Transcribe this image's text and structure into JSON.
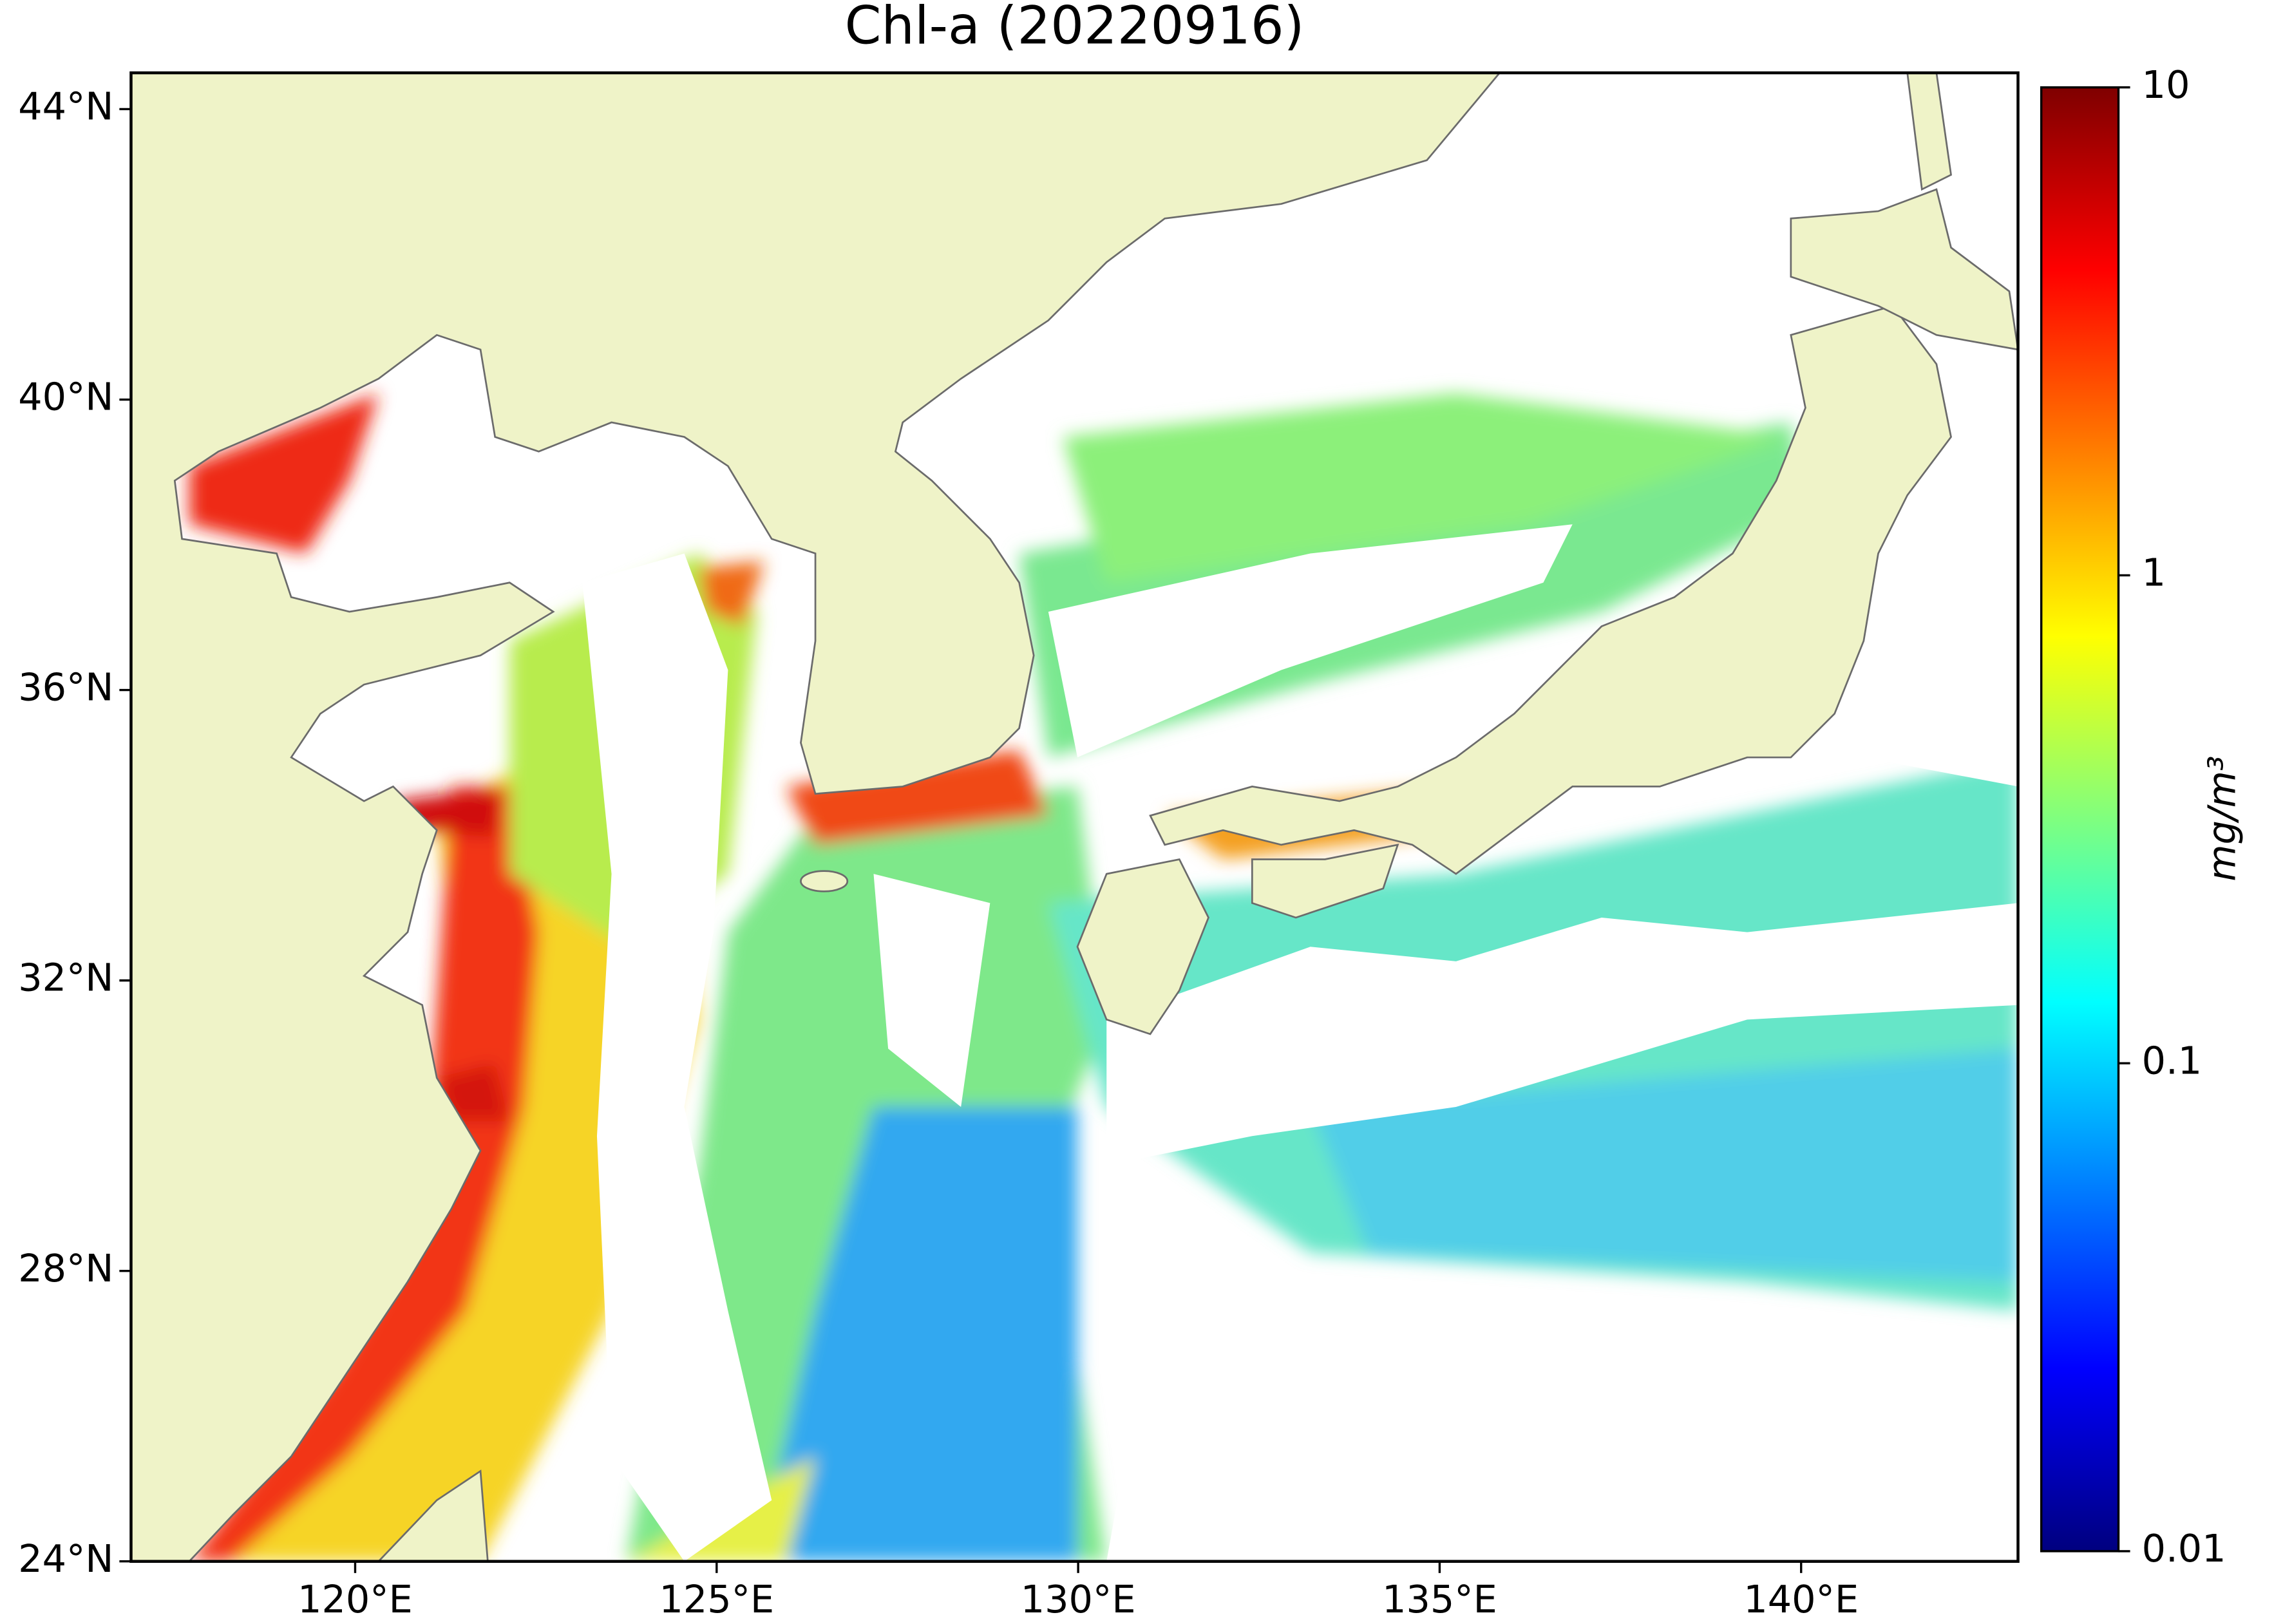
{
  "title": "Chl-a (20220916)",
  "map": {
    "xlim": [
      116.9,
      143
    ],
    "ylim": [
      24,
      44.5
    ],
    "xticks": [
      {
        "value": 120,
        "label": "120°E"
      },
      {
        "value": 125,
        "label": "125°E"
      },
      {
        "value": 130,
        "label": "130°E"
      },
      {
        "value": 135,
        "label": "135°E"
      },
      {
        "value": 140,
        "label": "140°E"
      }
    ],
    "yticks": [
      {
        "value": 24,
        "label": "24°N"
      },
      {
        "value": 28,
        "label": "28°N"
      },
      {
        "value": 32,
        "label": "32°N"
      },
      {
        "value": 36,
        "label": "36°N"
      },
      {
        "value": 40,
        "label": "40°N"
      },
      {
        "value": 44,
        "label": "44°N"
      }
    ]
  },
  "colorbar": {
    "label": "mg/m³",
    "lim": [
      0.01,
      10
    ],
    "ticks": [
      0.01,
      0.1,
      1,
      10
    ],
    "log": true,
    "colormap": "jet"
  }
}
